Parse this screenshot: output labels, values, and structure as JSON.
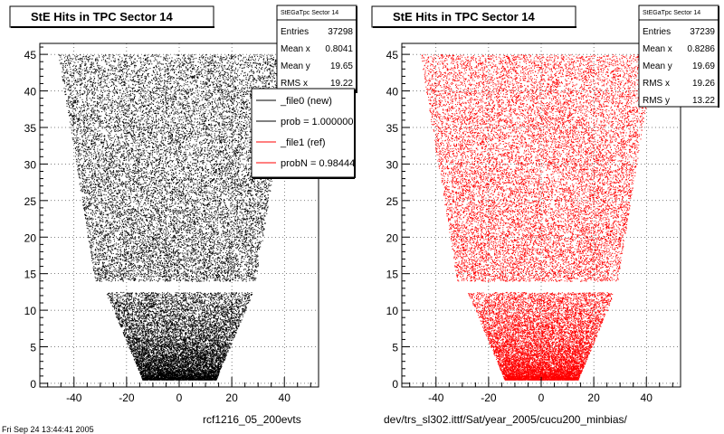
{
  "colors": {
    "new": "#000000",
    "ref": "#ff0000",
    "frame": "#000000",
    "background": "#ffffff"
  },
  "footer_fragment": "Fri Sep 24 13:44:41 2005",
  "chart_data": [
    {
      "type": "scatter",
      "title": "StE Hits in TPC Sector 14",
      "xlabel": "rcf1216_05_200evts",
      "ylabel": "",
      "xlim": [
        -53,
        53
      ],
      "ylim": [
        -0.5,
        46.5
      ],
      "xticks": [
        "-40",
        "-20",
        "0",
        "20",
        "40"
      ],
      "yticks": [
        "0",
        "5",
        "10",
        "15",
        "20",
        "25",
        "30",
        "35",
        "40",
        "45"
      ],
      "color": "#000000",
      "grid": true,
      "stats": {
        "name": "StEGaTpc Sector 14",
        "rows": [
          {
            "label": "Entries",
            "value": "37298"
          },
          {
            "label": "Mean x",
            "value": "0.8041"
          },
          {
            "label": "Mean y",
            "value": "19.65"
          },
          {
            "label": "RMS x",
            "value": "19.22"
          }
        ]
      },
      "legend": {
        "placement": "top-right",
        "entries": [
          {
            "label": "_file0 (new)",
            "color": "#000000"
          },
          {
            "label": "prob = 1.000000",
            "color": "#000000"
          },
          {
            "label": "_file1 (ref)",
            "color": "#ff0000"
          },
          {
            "label": "probN = 0.98444",
            "color": "#ff0000"
          }
        ]
      },
      "distribution": {
        "shape": "TPC sector trapezoid",
        "outer_section": {
          "y_range": [
            14,
            45
          ],
          "x_half_width_at_y14": 32,
          "x_half_width_at_y45": 46
        },
        "inner_section": {
          "y_range": [
            0.5,
            12.5
          ],
          "x_half_width_at_y0": 14,
          "x_half_width_at_y12": 28
        },
        "densest_region": "x from -10 to 10, y from 0 to 8"
      }
    },
    {
      "type": "scatter",
      "title": "StE Hits in TPC Sector 14",
      "xlabel": "dev/trs_sl302.ittf/Sat/year_2005/cucu200_minbias/",
      "ylabel": "",
      "xlim": [
        -53,
        53
      ],
      "ylim": [
        -0.5,
        46.5
      ],
      "xticks": [
        "-40",
        "-20",
        "0",
        "20",
        "40"
      ],
      "yticks": [
        "0",
        "5",
        "10",
        "15",
        "20",
        "25",
        "30",
        "35",
        "40",
        "45"
      ],
      "color": "#ff0000",
      "grid": true,
      "stats": {
        "name": "StEGaTpc Sector 14",
        "rows": [
          {
            "label": "Entries",
            "value": "37239"
          },
          {
            "label": "Mean x",
            "value": "0.8286"
          },
          {
            "label": "Mean y",
            "value": "19.69"
          },
          {
            "label": "RMS x",
            "value": "19.26"
          },
          {
            "label": "RMS y",
            "value": "13.22"
          }
        ]
      },
      "distribution": {
        "shape": "TPC sector trapezoid",
        "outer_section": {
          "y_range": [
            14,
            45
          ],
          "x_half_width_at_y14": 32,
          "x_half_width_at_y45": 46
        },
        "inner_section": {
          "y_range": [
            0.5,
            12.5
          ],
          "x_half_width_at_y0": 14,
          "x_half_width_at_y12": 28
        },
        "densest_region": "x from -10 to 10, y from 0 to 8"
      }
    }
  ]
}
